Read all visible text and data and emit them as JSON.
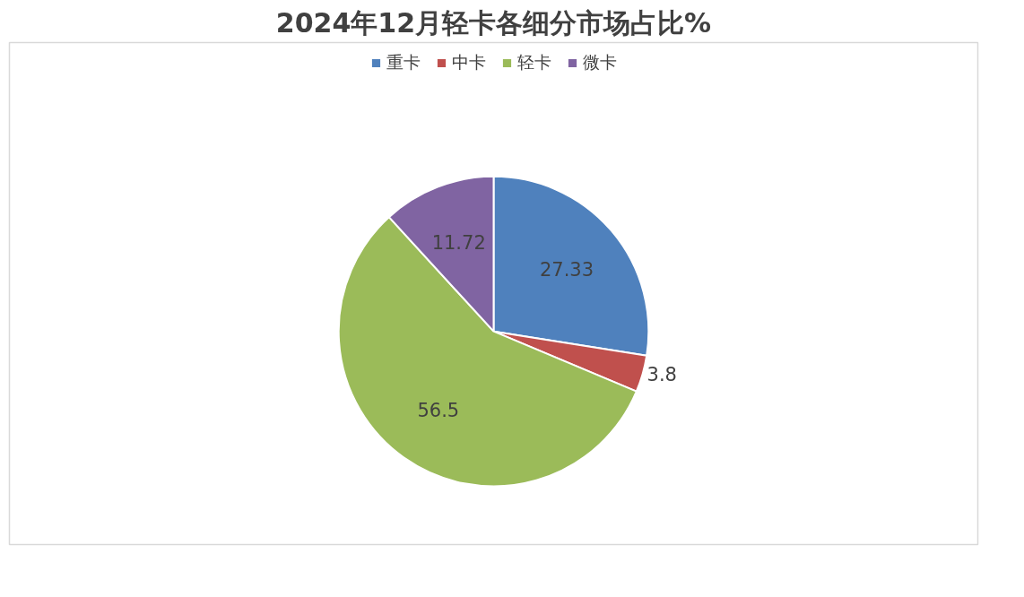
{
  "chart_data": {
    "type": "pie",
    "title": "2024年12月轻卡各细分市场占比%",
    "categories": [
      "重卡",
      "中卡",
      "轻卡",
      "微卡"
    ],
    "values": [
      27.33,
      3.8,
      56.5,
      11.72
    ],
    "colors": [
      "#4f81bd",
      "#c0504d",
      "#9bbb59",
      "#8064a2"
    ],
    "data_labels": true,
    "legend": "top"
  }
}
